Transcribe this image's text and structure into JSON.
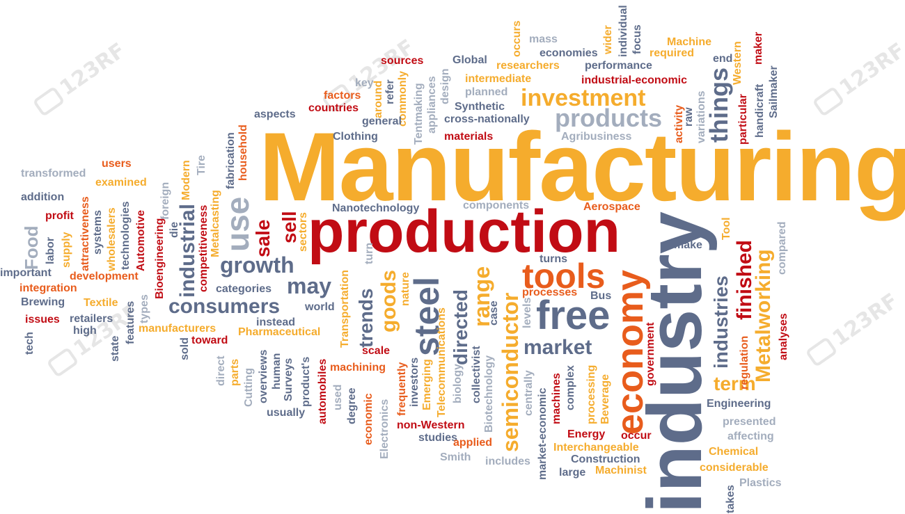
{
  "palette": {
    "gold": "#f5ac2d",
    "red": "#c10c14",
    "orange": "#e85c1c",
    "slate": "#5e6c8a",
    "grey": "#a3adbd",
    "background": "#ffffff"
  },
  "watermark": {
    "text": "123RF",
    "icon": "camera-icon"
  },
  "words": {
    "manufacturing": "Manufacturing",
    "production": "production",
    "industry": "industry",
    "economy": "economy",
    "tools": "tools",
    "free": "free",
    "steel": "steel",
    "investment": "investment",
    "products": "products",
    "things": "things",
    "consumers": "consumers",
    "growth": "growth",
    "use": "use",
    "industrial": "industrial",
    "may": "may",
    "market": "market",
    "semiconductor": "semiconductor",
    "range": "range",
    "directed": "directed",
    "goods": "goods",
    "trends": "trends",
    "sale": "sale",
    "sell": "sell",
    "finished": "finished",
    "industries": "industries",
    "metalworking": "Metalworking",
    "term": "term",
    "food": "Food",
    "sources": "sources",
    "global": "Global",
    "mass": "mass",
    "economies": "economies",
    "performance": "performance",
    "occurs": "occurs",
    "researchers": "researchers",
    "wider": "wider",
    "individual": "individual",
    "focus": "focus",
    "machine": "Machine",
    "required": "required",
    "end": "end",
    "western": "Western",
    "maker": "maker",
    "intermediate": "intermediate",
    "industrial_economic": "industrial-economic",
    "key": "key",
    "factors": "factors",
    "countries": "countries",
    "around": "around",
    "commonly": "commonly",
    "refer": "refer",
    "tentmaking": "Tentmaking",
    "appliances": "appliances",
    "design": "design",
    "planned": "planned",
    "particular": "particular",
    "handicraft": "handicraft",
    "sailmaker": "Sailmaker",
    "aspects": "aspects",
    "general": "general",
    "synthetic": "Synthetic",
    "cross_nationally": "cross-nationally",
    "activity": "activity",
    "raw": "raw",
    "variations": "variations",
    "clothing": "Clothing",
    "materials": "materials",
    "agribusiness": "Agribusiness",
    "household": "household",
    "fabrication": "fabrication",
    "transformed": "transformed",
    "users": "users",
    "examined": "examined",
    "foreign": "foreign",
    "modern": "Modern",
    "tire": "Tire",
    "addition": "addition",
    "profit": "profit",
    "attractiveness": "attractiveness",
    "systems": "systems",
    "wholesalers": "wholesalers",
    "technologies": "technologies",
    "automotive": "Automotive",
    "bioengineering": "Bioengineering",
    "die": "die",
    "competitiveness": "competitiveness",
    "metalcasting": "Metalcasting",
    "nanotechnology": "Nanotechnology",
    "components": "components",
    "aerospace": "Aerospace",
    "tool": "Tool",
    "make": "make",
    "compared": "compared",
    "labor": "labor",
    "supply": "supply",
    "important": "important",
    "development": "development",
    "integration": "integration",
    "brewing": "Brewing",
    "textile": "Textile",
    "types": "types",
    "issues": "issues",
    "retailers": "retailers",
    "high": "high",
    "tech": "tech",
    "state": "state",
    "features": "features",
    "manufacturers": "manufacturers",
    "sold": "sold",
    "toward": "toward",
    "pharmaceutical": "Pharmaceutical",
    "sectors": "sectors",
    "categories": "categories",
    "world": "world",
    "instead": "instead",
    "transportation": "Transportation",
    "nature": "nature",
    "turn": "turn",
    "turns": "turns",
    "processes": "processes",
    "bus": "Bus",
    "case": "case",
    "levels": "levels",
    "telecommunications": "Telecommunications",
    "analyses": "analyses",
    "regulation": "regulation",
    "government": "government",
    "parts": "parts",
    "direct": "direct",
    "cutting": "Cutting",
    "overviews": "overviews",
    "human": "human",
    "surveys": "Surveys",
    "products_apos": "product's",
    "automobiles": "automobiles",
    "machining": "machining",
    "scale": "scale",
    "investors": "investors",
    "frequently": "frequently",
    "emerging": "Emerging",
    "collectivist": "collectivist",
    "biology": "biology",
    "biotechnology": "Biotechnology",
    "centrally": "centrally",
    "market_economic": "market-economic",
    "machines": "machines",
    "complex": "complex",
    "processing": "processing",
    "beverage": "Beverage",
    "engineering": "Engineering",
    "presented": "presented",
    "affecting": "affecting",
    "chemical": "Chemical",
    "considerable": "considerable",
    "plastics": "Plastics",
    "takes": "takes",
    "usually": "usually",
    "used": "used",
    "degree": "degree",
    "economic": "economic",
    "electronics": "Electronics",
    "studies": "studies",
    "non_western": "non-Western",
    "applied": "applied",
    "smith": "Smith",
    "includes": "includes",
    "energy": "Energy",
    "occur": "occur",
    "interchangeable": "Interchangeable",
    "construction": "Construction",
    "large": "large",
    "machinist": "Machinist"
  }
}
